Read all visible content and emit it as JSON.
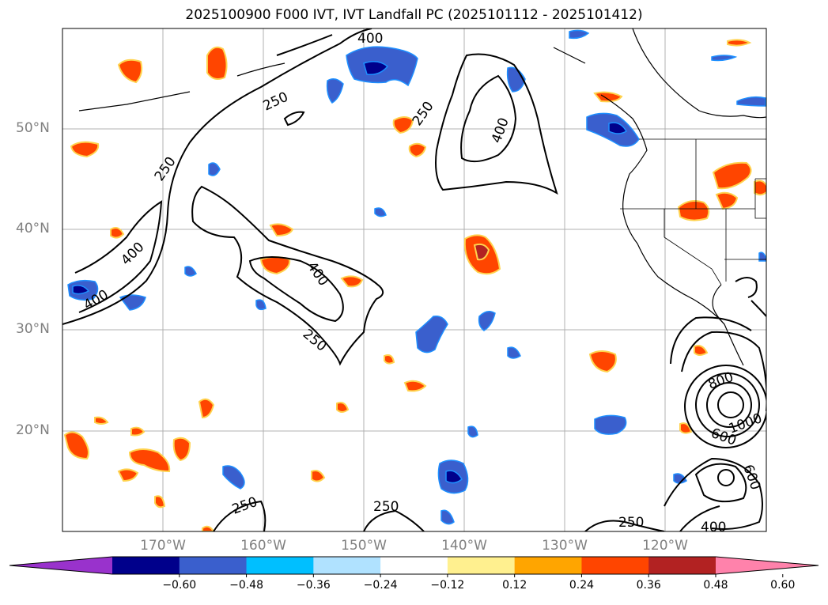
{
  "title": "2025100900 F000 IVT, IVT Landfall PC (2025101112 - 2025101412)",
  "lat_labels": [
    "50°N",
    "40°N",
    "30°N",
    "20°N"
  ],
  "lon_labels": [
    "170°W",
    "160°W",
    "150°W",
    "140°W",
    "130°W",
    "120°W"
  ],
  "contour_labels": [
    "400",
    "250",
    "250",
    "250",
    "400",
    "400",
    "400",
    "400",
    "250",
    "250",
    "250",
    "250",
    "800",
    "1000",
    "600",
    "600",
    "400"
  ],
  "colorbar": {
    "ticks": [
      "−0.60",
      "−0.48",
      "−0.36",
      "−0.24",
      "−0.12",
      "0.12",
      "0.24",
      "0.36",
      "0.48",
      "0.60"
    ],
    "colors": [
      "#9932cc",
      "#00008b",
      "#3a5fcd",
      "#00bfff",
      "#b0e2ff",
      "#ffffff",
      "#fff08f",
      "#ffa500",
      "#ff4500",
      "#b22222",
      "#ff82ab"
    ]
  }
}
